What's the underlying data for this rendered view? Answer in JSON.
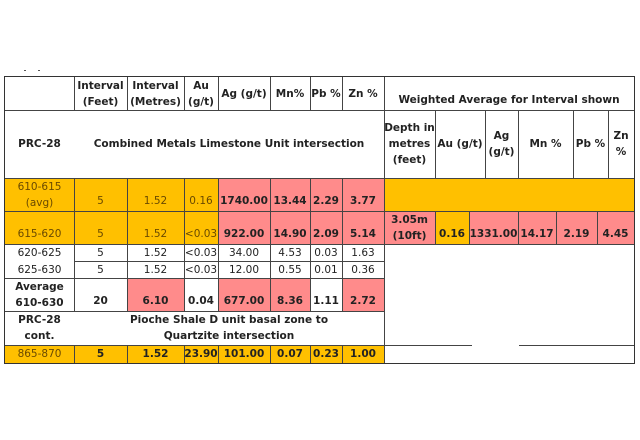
{
  "table": {
    "header": {
      "interval_feet": "Interval (Feet)",
      "interval_metres": "Interval (Metres)",
      "au": "Au (g/t)",
      "ag": "Ag (g/t)",
      "mn": "Mn%",
      "pb": "Pb %",
      "zn": "Zn %",
      "weighted_avg": "Weighted Average for Interval shown"
    },
    "section1": {
      "hole": "PRC-28",
      "title": "Combined Metals Limestone Unit intersection",
      "wa_headers": {
        "depth": "Depth in metres (feet)",
        "au": "Au (g/t)",
        "ag": "Ag (g/t)",
        "mn": "Mn %",
        "pb": "Pb %",
        "zn": "Zn %"
      }
    },
    "rows": [
      {
        "interval": "610-615 (avg)",
        "feet": "5",
        "metres": "1.52",
        "au": "0.16",
        "ag": "1740.00",
        "mn": "13.44",
        "pb": "2.29",
        "zn": "3.77"
      },
      {
        "interval": "615-620",
        "feet": "5",
        "metres": "1.52",
        "au": "<0.03",
        "ag": "922.00",
        "mn": "14.90",
        "pb": "2.09",
        "zn": "5.14"
      },
      {
        "interval": "620-625",
        "feet": "5",
        "metres": "1.52",
        "au": "<0.03",
        "ag": "34.00",
        "mn": "4.53",
        "pb": "0.03",
        "zn": "1.63"
      },
      {
        "interval": "625-630",
        "feet": "5",
        "metres": "1.52",
        "au": "<0.03",
        "ag": "12.00",
        "mn": "0.55",
        "pb": "0.01",
        "zn": "0.36"
      }
    ],
    "weighted": {
      "depth": "3.05m (10ft)",
      "au": "0.16",
      "ag": "1331.00",
      "mn": "14.17",
      "pb": "2.19",
      "zn": "4.45"
    },
    "average": {
      "label": "Average 610-630",
      "feet": "20",
      "metres": "6.10",
      "au": "0.04",
      "ag": "677.00",
      "mn": "8.36",
      "pb": "1.11",
      "zn": "2.72"
    },
    "section2": {
      "hole": "PRC-28 cont.",
      "title": "Pioche Shale D unit basal zone to Quartzite intersection"
    },
    "row2": {
      "interval": "865-870",
      "feet": "5",
      "metres": "1.52",
      "au": "23.90",
      "ag": "101.00",
      "mn": "0.07",
      "pb": "0.23",
      "zn": "1.00"
    }
  },
  "colors": {
    "highlight_yellow": "#ffc000",
    "highlight_red": "#ff8b8b",
    "border": "#444444"
  }
}
